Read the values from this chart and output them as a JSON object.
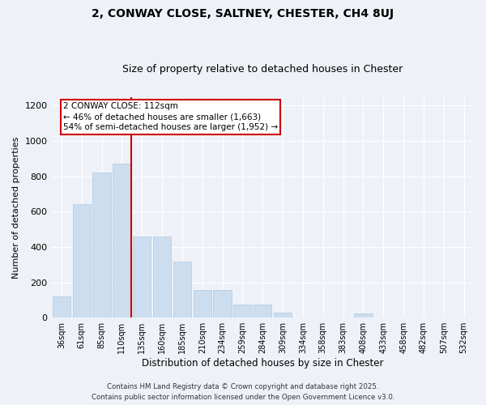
{
  "title": "2, CONWAY CLOSE, SALTNEY, CHESTER, CH4 8UJ",
  "subtitle": "Size of property relative to detached houses in Chester",
  "xlabel": "Distribution of detached houses by size in Chester",
  "ylabel": "Number of detached properties",
  "categories": [
    "36sqm",
    "61sqm",
    "85sqm",
    "110sqm",
    "135sqm",
    "160sqm",
    "185sqm",
    "210sqm",
    "234sqm",
    "259sqm",
    "284sqm",
    "309sqm",
    "334sqm",
    "358sqm",
    "383sqm",
    "408sqm",
    "433sqm",
    "458sqm",
    "482sqm",
    "507sqm",
    "532sqm"
  ],
  "values": [
    120,
    645,
    820,
    870,
    460,
    460,
    315,
    155,
    155,
    75,
    75,
    30,
    0,
    0,
    0,
    25,
    0,
    0,
    0,
    0,
    0
  ],
  "bar_color": "#ccddef",
  "bar_edgecolor": "#b0c8e0",
  "vline_index": 3,
  "vline_color": "#cc0000",
  "annotation_text": "2 CONWAY CLOSE: 112sqm\n← 46% of detached houses are smaller (1,663)\n54% of semi-detached houses are larger (1,952) →",
  "annotation_box_edgecolor": "#cc0000",
  "ylim": [
    0,
    1250
  ],
  "yticks": [
    0,
    200,
    400,
    600,
    800,
    1000,
    1200
  ],
  "background_color": "#eef2f8",
  "grid_color": "#ffffff",
  "footer_line1": "Contains HM Land Registry data © Crown copyright and database right 2025.",
  "footer_line2": "Contains public sector information licensed under the Open Government Licence v3.0."
}
